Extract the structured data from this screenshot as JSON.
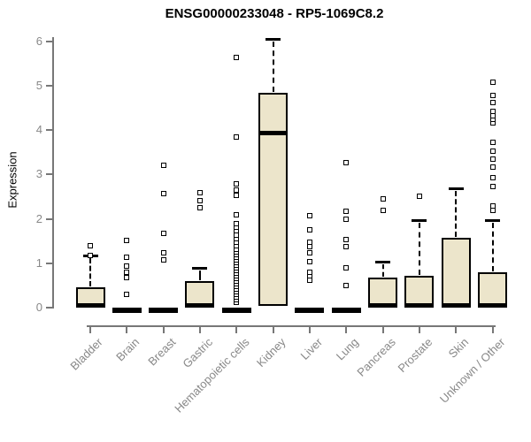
{
  "chart_data": {
    "type": "boxplot",
    "title": "ENSG00000233048 - RP5-1069C8.2",
    "ylabel": "Expression",
    "xlabel": "",
    "ylim": [
      0,
      6.2
    ],
    "yticks": [
      0,
      1,
      2,
      3,
      4,
      5,
      6
    ],
    "grid": false,
    "legend": "none",
    "categories": [
      "Bladder",
      "Brain",
      "Breast",
      "Gastric",
      "Hematopoietic cells",
      "Kidney",
      "Liver",
      "Lung",
      "Pancreas",
      "Prostate",
      "Skin",
      "Unknown / Other"
    ],
    "boxes": [
      {
        "label": "Bladder",
        "q1": 0,
        "median": 0.04,
        "q3": 0.45,
        "whisker_low": 0,
        "whisker_high": 1.17,
        "outliers": [
          1.17,
          1.4
        ]
      },
      {
        "label": "Brain",
        "q1": 0,
        "median": 0.02,
        "q3": 0,
        "whisker_low": 0,
        "whisker_high": 0,
        "outliers": [
          0.3,
          0.68,
          0.8,
          0.93,
          1.14,
          1.52
        ]
      },
      {
        "label": "Breast",
        "q1": 0,
        "median": 0.02,
        "q3": 0,
        "whisker_low": 0,
        "whisker_high": 0,
        "outliers": [
          1.08,
          1.23,
          1.67,
          2.57,
          3.21
        ]
      },
      {
        "label": "Gastric",
        "q1": 0,
        "median": 0.04,
        "q3": 0.6,
        "whisker_low": 0,
        "whisker_high": 0.9,
        "outliers": [
          2.25,
          2.42,
          2.6
        ]
      },
      {
        "label": "Hematopoietic cells",
        "q1": 0,
        "median": 0.02,
        "q3": 0,
        "whisker_low": 0,
        "whisker_high": 0,
        "outliers": [
          0.12,
          0.18,
          0.24,
          0.3,
          0.36,
          0.42,
          0.48,
          0.54,
          0.6,
          0.66,
          0.72,
          0.78,
          0.84,
          0.9,
          0.96,
          1.02,
          1.08,
          1.14,
          1.2,
          1.26,
          1.32,
          1.4,
          1.48,
          1.56,
          1.64,
          1.73,
          1.82,
          1.9,
          2.09,
          2.53,
          2.65,
          2.79,
          3.85,
          5.64
        ]
      },
      {
        "label": "Kidney",
        "q1": 0.04,
        "median": 3.94,
        "q3": 4.85,
        "whisker_low": 0.04,
        "whisker_high": 6.06,
        "outliers": []
      },
      {
        "label": "Liver",
        "q1": 0,
        "median": 0.02,
        "q3": 0,
        "whisker_low": 0,
        "whisker_high": 0,
        "outliers": [
          0.62,
          0.72,
          0.8,
          1.04,
          1.24,
          1.37,
          1.47,
          1.75,
          2.07
        ]
      },
      {
        "label": "Lung",
        "q1": 0,
        "median": 0.02,
        "q3": 0,
        "whisker_low": 0,
        "whisker_high": 0,
        "outliers": [
          0.5,
          0.9,
          1.37,
          1.53,
          2.0,
          2.17,
          3.27
        ]
      },
      {
        "label": "Pancreas",
        "q1": 0,
        "median": 0.04,
        "q3": 0.68,
        "whisker_low": 0,
        "whisker_high": 1.03,
        "outliers": [
          2.2,
          2.45
        ]
      },
      {
        "label": "Prostate",
        "q1": 0,
        "median": 0.04,
        "q3": 0.72,
        "whisker_low": 0,
        "whisker_high": 1.97,
        "outliers": [
          2.52
        ]
      },
      {
        "label": "Skin",
        "q1": 0,
        "median": 0.04,
        "q3": 1.57,
        "whisker_low": 0,
        "whisker_high": 2.7,
        "outliers": []
      },
      {
        "label": "Unknown / Other",
        "q1": 0,
        "median": 0.04,
        "q3": 0.8,
        "whisker_low": 0,
        "whisker_high": 1.97,
        "outliers": [
          2.19,
          2.29,
          2.73,
          2.93,
          3.17,
          3.35,
          3.53,
          3.73,
          4.16,
          4.24,
          4.33,
          4.42,
          4.62,
          4.78,
          5.08
        ]
      }
    ],
    "colors": {
      "box_fill": "#ece5cb",
      "box_border": "#000000",
      "outlier_fill": "#ffffff",
      "axis": "#777777",
      "muted_text": "#888888",
      "title_color": "#000000"
    }
  }
}
